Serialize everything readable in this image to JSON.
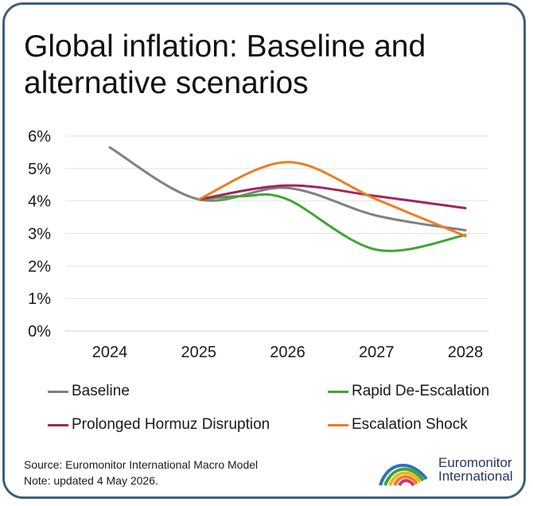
{
  "title": "Global inflation: Baseline and alternative scenarios",
  "source_line": "Source: Euromonitor International Macro Model",
  "note_line": "Note: updated 4 May 2026.",
  "logo": {
    "line1": "Euromonitor",
    "line2": "International",
    "icon": "euromonitor-rainbow-arch-icon"
  },
  "chart_data": {
    "type": "line",
    "title": "Global inflation: Baseline and alternative scenarios",
    "x_categories": [
      "2024",
      "2025",
      "2026",
      "2027",
      "2028"
    ],
    "y_ticks": [
      "0%",
      "1%",
      "2%",
      "3%",
      "4%",
      "5%",
      "6%"
    ],
    "ylim": [
      0,
      6
    ],
    "y_unit": "%",
    "grid": true,
    "legend_position": "bottom",
    "series": [
      {
        "name": "Baseline",
        "color": "#808080",
        "points": [
          [
            2024,
            5.65
          ],
          [
            2025,
            4.05
          ],
          [
            2026,
            4.4
          ],
          [
            2027,
            3.55
          ],
          [
            2028,
            3.1
          ]
        ]
      },
      {
        "name": "Rapid De-Escalation",
        "color": "#3fa535",
        "points": [
          [
            2025,
            4.05
          ],
          [
            2025.5,
            4.15
          ],
          [
            2026,
            4.05
          ],
          [
            2027,
            2.5
          ],
          [
            2028,
            2.95
          ]
        ]
      },
      {
        "name": "Prolonged Hormuz Disruption",
        "color": "#a3245d",
        "points": [
          [
            2025,
            4.05
          ],
          [
            2026,
            4.48
          ],
          [
            2027,
            4.15
          ],
          [
            2028,
            3.78
          ]
        ]
      },
      {
        "name": "Escalation Shock",
        "color": "#f07c21",
        "points": [
          [
            2025,
            4.05
          ],
          [
            2026,
            5.2
          ],
          [
            2027,
            4.05
          ],
          [
            2028,
            2.92
          ]
        ]
      }
    ]
  }
}
